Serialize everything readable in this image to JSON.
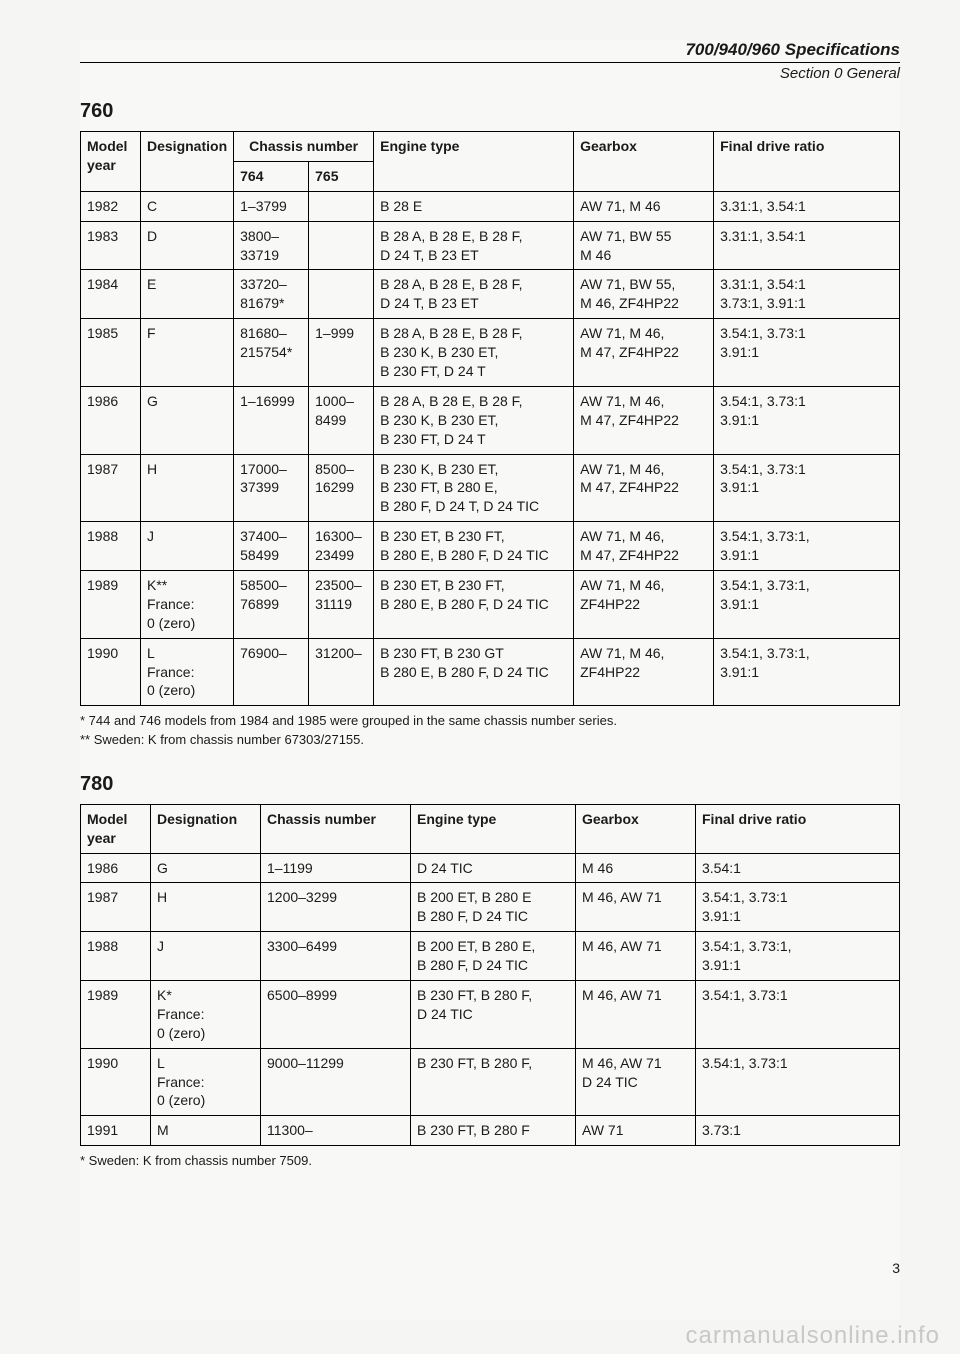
{
  "doc_title": "700/940/960 Specifications",
  "section_label": "Section 0 General",
  "page_number": "3",
  "watermark": "carmanualsonline.info",
  "table760": {
    "heading": "760",
    "headers": {
      "year": "Model year",
      "designation": "Designation",
      "chassis": "Chassis number",
      "c764": "764",
      "c765": "765",
      "engine": "Engine type",
      "gearbox": "Gearbox",
      "final": "Final drive ratio"
    },
    "rows": [
      {
        "year": "1982",
        "des": "C",
        "c764": "1–3799",
        "c765": "",
        "eng": "B 28 E",
        "gb": "AW 71, M 46",
        "final": "3.31:1, 3.54:1"
      },
      {
        "year": "1983",
        "des": "D",
        "c764": "3800–\n33719",
        "c765": "",
        "eng": "B 28 A, B 28 E, B 28 F,\nD 24 T, B 23 ET",
        "gb": "AW 71, BW 55\nM 46",
        "final": "3.31:1, 3.54:1"
      },
      {
        "year": "1984",
        "des": "E",
        "c764": "33720–\n81679*",
        "c765": "",
        "eng": "B 28 A, B 28 E, B 28 F,\nD 24 T, B 23 ET",
        "gb": "AW 71, BW 55,\nM 46, ZF4HP22",
        "final": "3.31:1, 3.54:1\n3.73:1, 3.91:1"
      },
      {
        "year": "1985",
        "des": "F",
        "c764": "81680–\n215754*",
        "c765": "1–999",
        "eng": "B 28 A, B 28 E, B 28 F,\nB 230 K, B 230 ET,\nB 230 FT, D 24 T",
        "gb": "AW 71, M 46,\nM 47, ZF4HP22",
        "final": "3.54:1, 3.73:1\n3.91:1"
      },
      {
        "year": "1986",
        "des": "G",
        "c764": "1–16999",
        "c765": "1000–\n8499",
        "eng": "B 28 A, B 28 E, B 28 F,\nB 230 K, B 230 ET,\nB 230 FT, D 24 T",
        "gb": "AW 71, M 46,\nM 47, ZF4HP22",
        "final": "3.54:1, 3.73:1\n3.91:1"
      },
      {
        "year": "1987",
        "des": "H",
        "c764": "17000–\n37399",
        "c765": "8500–\n16299",
        "eng": "B 230 K, B 230 ET,\nB 230 FT, B 280 E,\nB 280 F, D 24 T, D 24 TIC",
        "gb": "AW 71, M 46,\nM 47, ZF4HP22",
        "final": "3.54:1, 3.73:1\n3.91:1"
      },
      {
        "year": "1988",
        "des": "J",
        "c764": "37400–\n58499",
        "c765": "16300–\n23499",
        "eng": "B 230 ET, B 230 FT,\nB 280 E, B 280 F, D 24 TIC",
        "gb": "AW 71, M 46,\nM 47, ZF4HP22",
        "final": "3.54:1, 3.73:1,\n3.91:1"
      },
      {
        "year": "1989",
        "des": "K**\nFrance:\n0 (zero)",
        "c764": "58500–\n76899",
        "c765": "23500–\n31119",
        "eng": "B 230 ET, B 230 FT,\nB 280 E, B 280 F, D 24 TIC",
        "gb": "AW 71, M 46,\nZF4HP22",
        "final": "3.54:1, 3.73:1,\n3.91:1"
      },
      {
        "year": "1990",
        "des": "L\nFrance:\n0 (zero)",
        "c764": "76900–",
        "c765": "31200–",
        "eng": "B 230 FT, B 230 GT\nB 280 E, B 280 F, D 24 TIC",
        "gb": "AW 71, M 46,\nZF4HP22",
        "final": "3.54:1, 3.73:1,\n3.91:1"
      }
    ],
    "footnote": "* 744 and 746 models from 1984 and 1985 were grouped in the same chassis number series.\n** Sweden: K from chassis number 67303/27155."
  },
  "table780": {
    "heading": "780",
    "headers": {
      "year": "Model year",
      "designation": "Designation",
      "chassis": "Chassis number",
      "engine": "Engine type",
      "gearbox": "Gearbox",
      "final": "Final drive ratio"
    },
    "rows": [
      {
        "year": "1986",
        "des": "G",
        "cn": "1–1199",
        "eng": "D 24 TIC",
        "gb": "M 46",
        "final": "3.54:1"
      },
      {
        "year": "1987",
        "des": "H",
        "cn": "1200–3299",
        "eng": "B 200 ET, B 280 E\nB 280 F, D 24 TIC",
        "gb": "M 46, AW 71",
        "final": "3.54:1, 3.73:1\n3.91:1"
      },
      {
        "year": "1988",
        "des": "J",
        "cn": "3300–6499",
        "eng": "B 200 ET, B 280 E,\nB 280 F, D 24 TIC",
        "gb": "M 46, AW 71",
        "final": "3.54:1, 3.73:1,\n3.91:1"
      },
      {
        "year": "1989",
        "des": "K*\nFrance:\n0 (zero)",
        "cn": "6500–8999",
        "eng": "B 230 FT, B 280 F,\nD 24 TIC",
        "gb": "M 46, AW 71",
        "final": "3.54:1, 3.73:1"
      },
      {
        "year": "1990",
        "des": "L\nFrance:\n0 (zero)",
        "cn": "9000–11299",
        "eng": "B 230 FT, B 280 F,",
        "gb": "M 46, AW 71\nD 24 TIC",
        "final": "3.54:1, 3.73:1"
      },
      {
        "year": "1991",
        "des": "M",
        "cn": "11300–",
        "eng": "B 230 FT, B 280 F",
        "gb": "AW 71",
        "final": "3.73:1"
      }
    ],
    "footnote": "* Sweden: K from chassis number 7509."
  }
}
